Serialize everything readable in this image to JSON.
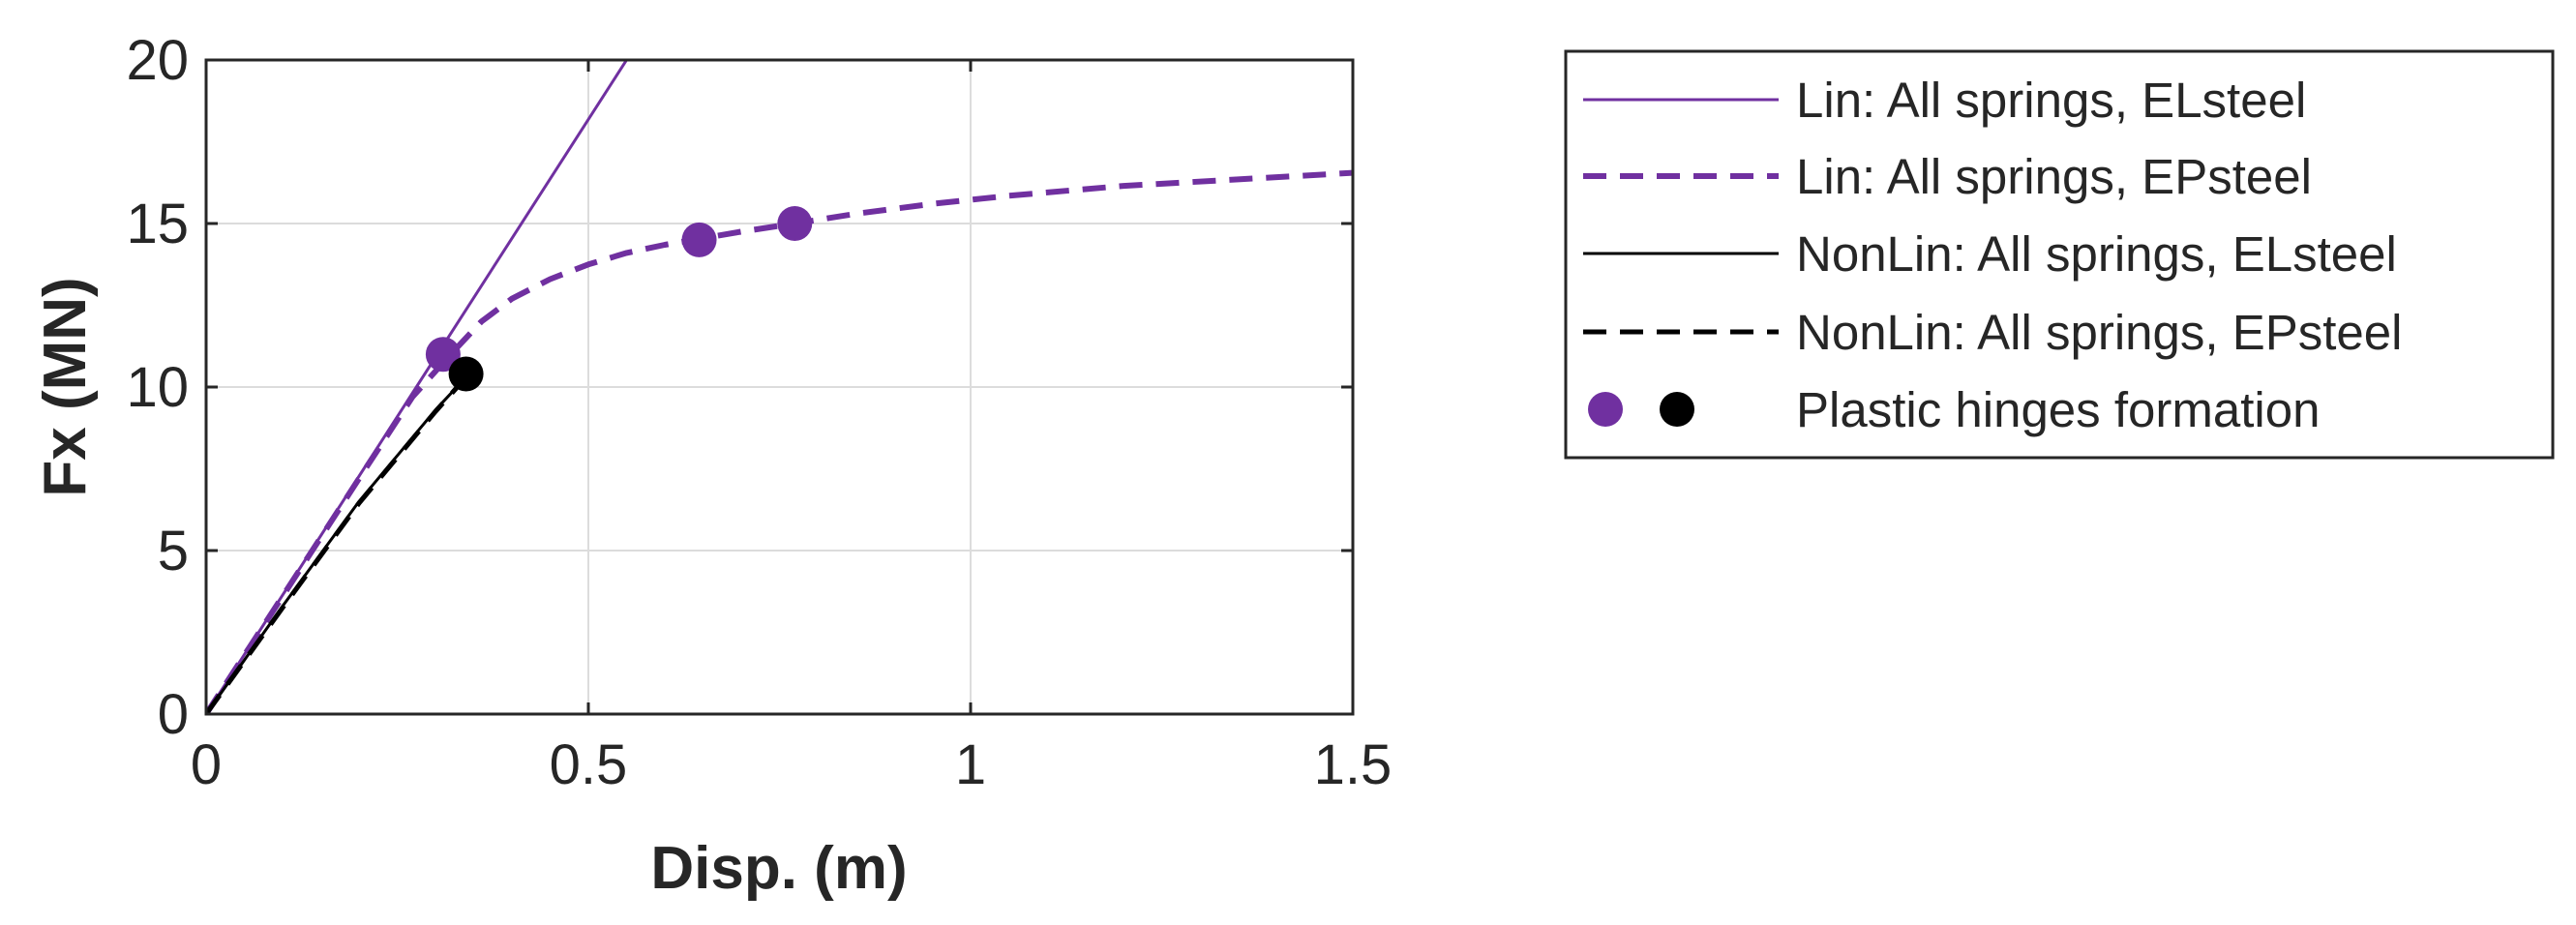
{
  "chart_data": {
    "type": "line",
    "title": "",
    "xlabel": "Disp. (m)",
    "ylabel": "Fx (MN)",
    "xlim": [
      0,
      1.5
    ],
    "ylim": [
      0,
      20
    ],
    "xticks": [
      0,
      0.5,
      1,
      1.5
    ],
    "xtick_labels": [
      "0",
      "0.5",
      "1",
      "1.5"
    ],
    "yticks": [
      0,
      5,
      10,
      15,
      20
    ],
    "ytick_labels": [
      "0",
      "5",
      "10",
      "15",
      "20"
    ],
    "grid": true,
    "legend_position": "outside-right",
    "series": [
      {
        "name": "Lin: All springs, ELsteel",
        "color": "#7030a0",
        "style": "solid",
        "x": [
          0,
          0.55
        ],
        "y": [
          0,
          20
        ]
      },
      {
        "name": "Lin: All springs, EPsteel",
        "color": "#7030a0",
        "style": "dashed",
        "x": [
          0,
          0.1,
          0.2,
          0.27,
          0.32,
          0.36,
          0.4,
          0.45,
          0.5,
          0.55,
          0.6,
          0.65,
          0.7,
          0.77,
          0.85,
          0.95,
          1.05,
          1.2,
          1.35,
          1.5
        ],
        "y": [
          0,
          3.6,
          7.2,
          9.7,
          11.0,
          12.0,
          12.7,
          13.3,
          13.75,
          14.1,
          14.35,
          14.55,
          14.75,
          15.0,
          15.3,
          15.6,
          15.85,
          16.15,
          16.35,
          16.55
        ]
      },
      {
        "name": "NonLin: All springs, ELsteel",
        "color": "#000000",
        "style": "solid",
        "x": [
          0,
          0.1,
          0.2,
          0.3,
          0.34
        ],
        "y": [
          0,
          3.3,
          6.5,
          9.3,
          10.3
        ]
      },
      {
        "name": "NonLin: All springs, EPsteel",
        "color": "#000000",
        "style": "dashed",
        "x": [
          0,
          0.1,
          0.2,
          0.3,
          0.34
        ],
        "y": [
          0,
          3.25,
          6.45,
          9.25,
          10.3
        ]
      }
    ],
    "markers": {
      "label": "Plastic hinges formation",
      "points": [
        {
          "x": 0.31,
          "y": 11.0,
          "color": "#7030a0"
        },
        {
          "x": 0.645,
          "y": 14.5,
          "color": "#7030a0"
        },
        {
          "x": 0.77,
          "y": 15.0,
          "color": "#7030a0"
        },
        {
          "x": 0.34,
          "y": 10.4,
          "color": "#000000"
        }
      ],
      "legend_colors": [
        "#7030a0",
        "#000000"
      ]
    }
  }
}
